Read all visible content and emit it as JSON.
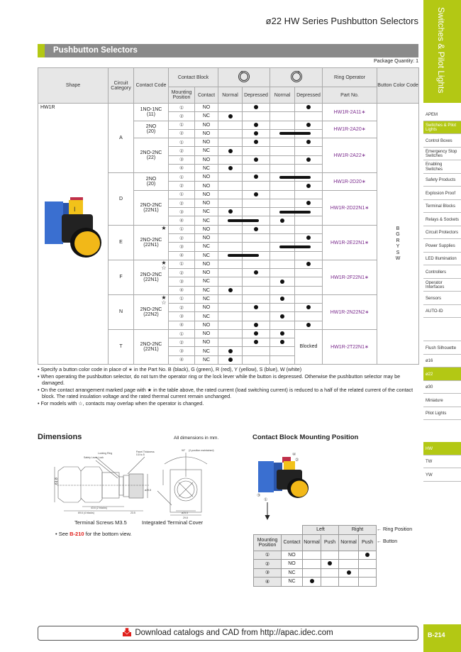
{
  "header": {
    "page_title": "ø22 HW Series Pushbutton Selectors",
    "side_title": "Switches & Pilot Lights",
    "accent": "#b3c814"
  },
  "section_title": "Pushbutton Selectors",
  "package_quantity": "Package Quantity: 1",
  "sidebar": {
    "categories": [
      {
        "label": "APEM"
      },
      {
        "label": "Switches & Pilot Lights",
        "active": true
      },
      {
        "label": "Control Boxes"
      },
      {
        "label": "Emergency Stop Switches"
      },
      {
        "label": "Enabling Switches"
      },
      {
        "label": "Safety Products"
      },
      {
        "label": "Explosion Proof"
      },
      {
        "label": "Terminal Blocks"
      },
      {
        "label": "Relays & Sockets"
      },
      {
        "label": "Circuit Protectors"
      },
      {
        "label": "Power Supplies"
      },
      {
        "label": "LED Illumination"
      },
      {
        "label": "Controllers"
      },
      {
        "label": "Operator Interfaces"
      },
      {
        "label": "Sensors"
      },
      {
        "label": "AUTO-ID"
      }
    ],
    "sizes": [
      {
        "label": "Flush Silhouette"
      },
      {
        "label": "ø16"
      },
      {
        "label": "ø22",
        "active": true
      },
      {
        "label": "ø30"
      },
      {
        "label": "Miniature"
      },
      {
        "label": "Pilot Lights"
      }
    ],
    "series": [
      {
        "label": "HW",
        "active": true
      },
      {
        "label": "TW"
      },
      {
        "label": "YW"
      }
    ]
  },
  "table": {
    "headers": {
      "shape": "Shape",
      "circuit_category": "Circuit Category",
      "contact_code": "Contact Code",
      "contact_block": "Contact Block",
      "mounting_position": "Mounting Position",
      "contact": "Contact",
      "normal": "Normal",
      "depressed": "Depressed",
      "ring_operator": "Ring Operator",
      "part_no": "Part No.",
      "button_color_code": "Button Color Code",
      "ring_left_icon": "ring-left-icon",
      "ring_right_icon": "ring-right-icon"
    },
    "shape": "HW1R",
    "color_codes": [
      "B",
      "G",
      "R",
      "Y",
      "S",
      "W"
    ],
    "groups": [
      {
        "category": "A",
        "subgroups": [
          {
            "code": "1NO-1NC",
            "sub": "(11)",
            "part_no": "HW1R-2A11∗",
            "rows": [
              {
                "pos": "①",
                "contact": "NO",
                "left": "D",
                "right": "D"
              },
              {
                "pos": "②",
                "contact": "NC",
                "left": "N",
                "right": ""
              }
            ]
          },
          {
            "code": "2NO",
            "sub": "(20)",
            "part_no": "HW1R-2A20∗",
            "rows": [
              {
                "pos": "①",
                "contact": "NO",
                "left": "D",
                "right": "D"
              },
              {
                "pos": "②",
                "contact": "NO",
                "left": "D",
                "right": "ND"
              }
            ]
          },
          {
            "code": "2NO-2NC",
            "sub": "(22)",
            "part_no": "HW1R-2A22∗",
            "rows": [
              {
                "pos": "①",
                "contact": "NO",
                "left": "D",
                "right": "D"
              },
              {
                "pos": "②",
                "contact": "NC",
                "left": "N",
                "right": ""
              },
              {
                "pos": "③",
                "contact": "NO",
                "left": "D",
                "right": "D"
              },
              {
                "pos": "④",
                "contact": "NC",
                "left": "N",
                "right": ""
              }
            ]
          }
        ]
      },
      {
        "category": "D",
        "subgroups": [
          {
            "code": "2NO",
            "sub": "(20)",
            "part_no": "HW1R-2D20∗",
            "rows": [
              {
                "pos": "①",
                "contact": "NO",
                "left": "D",
                "right": "ND"
              },
              {
                "pos": "②",
                "contact": "NO",
                "left": "",
                "right": "D"
              }
            ]
          },
          {
            "code": "2NO-2NC",
            "sub": "(22N1)",
            "part_no": "HW1R-2D22N1∗",
            "rows": [
              {
                "pos": "①",
                "contact": "NO",
                "left": "D",
                "right": ""
              },
              {
                "pos": "②",
                "contact": "NO",
                "left": "",
                "right": "D"
              },
              {
                "pos": "③",
                "contact": "NC",
                "left": "N",
                "right": "ND"
              },
              {
                "pos": "④",
                "contact": "NC",
                "left": "ND",
                "right": "N"
              }
            ]
          }
        ]
      },
      {
        "category": "E",
        "subgroups": [
          {
            "code": "2NO-2NC",
            "sub": "(22N1)",
            "stars": "★",
            "part_no": "HW1R-2E22N1∗",
            "rows": [
              {
                "pos": "①",
                "contact": "NO",
                "left": "D",
                "right": ""
              },
              {
                "pos": "②",
                "contact": "NO",
                "left": "",
                "right": "D"
              },
              {
                "pos": "③",
                "contact": "NC",
                "left": "",
                "right": "ND"
              },
              {
                "pos": "④",
                "contact": "NC",
                "left": "ND",
                "right": ""
              }
            ]
          }
        ]
      },
      {
        "category": "F",
        "subgroups": [
          {
            "code": "2NO-2NC",
            "sub": "(22N1)",
            "stars": "★☆",
            "part_no": "HW1R-2F22N1∗",
            "rows": [
              {
                "pos": "①",
                "contact": "NO",
                "left": "",
                "right": "D"
              },
              {
                "pos": "②",
                "contact": "NO",
                "left": "D",
                "right": ""
              },
              {
                "pos": "③",
                "contact": "NC",
                "left": "",
                "right": "N"
              },
              {
                "pos": "④",
                "contact": "NC",
                "left": "N",
                "right": ""
              }
            ]
          }
        ]
      },
      {
        "category": "N",
        "subgroups": [
          {
            "code": "2NO-2NC",
            "sub": "(22N2)",
            "stars": "★☆",
            "part_no": "HW1R-2N22N2∗",
            "rows": [
              {
                "pos": "①",
                "contact": "NC",
                "left": "",
                "right": "N"
              },
              {
                "pos": "②",
                "contact": "NO",
                "left": "D",
                "right": "D"
              },
              {
                "pos": "③",
                "contact": "NC",
                "left": "",
                "right": "N"
              },
              {
                "pos": "④",
                "contact": "NO",
                "left": "D",
                "right": "D"
              }
            ]
          }
        ]
      },
      {
        "category": "T",
        "subgroups": [
          {
            "code": "2NO-2NC",
            "sub": "(22N1)",
            "blocked": "Blocked",
            "part_no": "HW1R-2T22N1∗",
            "rows": [
              {
                "pos": "①",
                "contact": "NO",
                "left": "D",
                "right": "N"
              },
              {
                "pos": "②",
                "contact": "NO",
                "left": "D",
                "right": "N"
              },
              {
                "pos": "③",
                "contact": "NC",
                "left": "N",
                "right": ""
              },
              {
                "pos": "④",
                "contact": "NC",
                "left": "N",
                "right": ""
              }
            ]
          }
        ]
      }
    ]
  },
  "notes": [
    "• Specify a button color code in place of ∗ in the Part No. B (black), G (green), R (red), Y (yellow), S (blue), W (white)",
    "• When operating the pushbutton selector, do not turn the operator ring or the lock lever while the button is depressed. Otherwise the pushbutton selector may be damaged.",
    "• On the contact arrangement marked page with ★ in the table above, the rated current (load switching current) is reduced to a half of the related current of the contact block. The rated insulation voltage and the rated thermal current remain unchanged.",
    "• For models with ☆, contacts may overlap when the operator is changed."
  ],
  "dimensions": {
    "title": "Dimensions",
    "unit_note": "All dimensions in mm.",
    "labels": {
      "locking_ring": "Locking Ring",
      "safety_lever": "Safety Lever Lock",
      "panel": "Panel Thickness",
      "panel_range": "0.8 to 5",
      "two_blocks": "43.6 (2 blocks)",
      "four_blocks": "69.6 (4 blocks)",
      "d235": "23.5",
      "h618": "61.8",
      "dia298": "ø29.8",
      "angle": "90°",
      "maintained": "(2-position maintained)",
      "dia255": "ø25.5",
      "w298": "29.8"
    },
    "caption_left": "Terminal Screws M3.5",
    "caption_right": "Integrated Terminal Cover",
    "see_prefix": "• See ",
    "see_link": "B-210",
    "see_suffix": " for the bottom view."
  },
  "mounting": {
    "title": "Contact Block Mounting Position",
    "image_positions": [
      "④",
      "②",
      "③",
      "①"
    ],
    "ring_position_label": "← Ring Position",
    "button_label": "← Button",
    "headers": {
      "left": "Left",
      "right": "Right",
      "mounting_position": "Mounting Position",
      "contact": "Contact",
      "normal": "Normal",
      "push": "Push"
    },
    "rows": [
      {
        "pos": "①",
        "contact": "NO",
        "mark": 3
      },
      {
        "pos": "②",
        "contact": "NO",
        "mark": 1
      },
      {
        "pos": "③",
        "contact": "NC",
        "mark": 2
      },
      {
        "pos": "④",
        "contact": "NC",
        "mark": 0
      }
    ]
  },
  "footer": {
    "text": "Download catalogs and CAD from http://apac.idec.com",
    "page": "B-214",
    "icon": "download-icon"
  }
}
